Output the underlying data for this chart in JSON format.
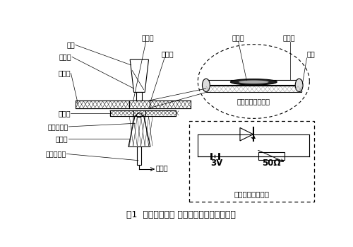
{
  "title": "图1  悬浊液观察片 照明头结构及安装示意图",
  "title_fontsize": 9,
  "bg_color": "#ffffff",
  "text_color": "#000000",
  "label_observe": "观察片装配结构图",
  "label_circuit": "照明头电源接线图",
  "label_power": "接电源",
  "label_3v": "3V",
  "label_50ohm": "50Ω"
}
